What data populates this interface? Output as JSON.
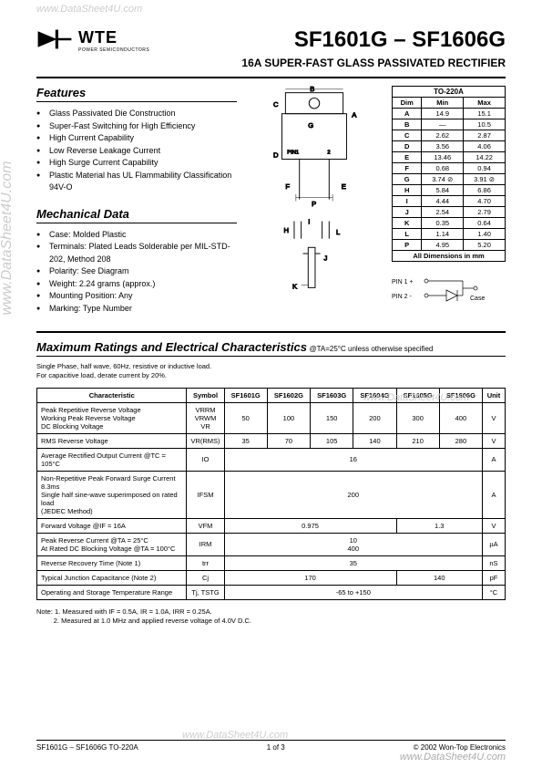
{
  "watermarks": {
    "left": "www.DataSheet4U.com",
    "top": "www.DataSheet4U.com",
    "center": "www.DataSheet4U.com",
    "bottom_center": "www.DataSheet4U.com",
    "bottom_right": "www.DataSheet4U.com"
  },
  "logo": {
    "brand": "WTE",
    "subtitle": "POWER SEMICONDUCTORS"
  },
  "header": {
    "part_range": "SF1601G – SF1606G",
    "subtitle": "16A SUPER-FAST GLASS PASSIVATED RECTIFIER"
  },
  "features": {
    "title": "Features",
    "items": [
      "Glass Passivated Die Construction",
      "Super-Fast Switching for High Efficiency",
      "High Current Capability",
      "Low Reverse Leakage Current",
      "High Surge Current Capability",
      "Plastic Material has UL Flammability Classification 94V-O"
    ]
  },
  "mechanical": {
    "title": "Mechanical Data",
    "items": [
      "Case: Molded Plastic",
      "Terminals: Plated Leads Solderable per MIL-STD-202, Method 208",
      "Polarity: See Diagram",
      "Weight: 2.24 grams (approx.)",
      "Mounting Position: Any",
      "Marking: Type Number"
    ]
  },
  "dimensions": {
    "caption": "TO-220A",
    "headers": [
      "Dim",
      "Min",
      "Max"
    ],
    "rows": [
      [
        "A",
        "14.9",
        "15.1"
      ],
      [
        "B",
        "—",
        "10.5"
      ],
      [
        "C",
        "2.62",
        "2.87"
      ],
      [
        "D",
        "3.56",
        "4.06"
      ],
      [
        "E",
        "13.46",
        "14.22"
      ],
      [
        "F",
        "0.68",
        "0.94"
      ],
      [
        "G",
        "3.74 ⊘",
        "3.91 ⊘"
      ],
      [
        "H",
        "5.84",
        "6.86"
      ],
      [
        "I",
        "4.44",
        "4.70"
      ],
      [
        "J",
        "2.54",
        "2.79"
      ],
      [
        "K",
        "0.35",
        "0.64"
      ],
      [
        "L",
        "1.14",
        "1.40"
      ],
      [
        "P",
        "4.95",
        "5.20"
      ]
    ],
    "footer": "All Dimensions in mm"
  },
  "pins": {
    "pin1": "PIN 1 +",
    "pin2": "PIN 2 -",
    "case": "Case"
  },
  "maximum": {
    "title": "Maximum Ratings and Electrical Characteristics",
    "cond": "@TA=25°C unless otherwise specified",
    "desc1": "Single Phase, half wave, 60Hz, resistive or inductive load.",
    "desc2": "For capacitive load, derate current by 20%."
  },
  "char_table": {
    "headers": [
      "Characteristic",
      "Symbol",
      "SF1601G",
      "SF1602G",
      "SF1603G",
      "SF1604G",
      "SF1605G",
      "SF1606G",
      "Unit"
    ],
    "rows": [
      {
        "char": "Peak Repetitive Reverse Voltage\nWorking Peak Reverse Voltage\nDC Blocking Voltage",
        "symbol": "VRRM\nVRWM\nVR",
        "vals": [
          "50",
          "100",
          "150",
          "200",
          "300",
          "400"
        ],
        "unit": "V"
      },
      {
        "char": "RMS Reverse Voltage",
        "symbol": "VR(RMS)",
        "vals": [
          "35",
          "70",
          "105",
          "140",
          "210",
          "280"
        ],
        "unit": "V"
      },
      {
        "char": "Average Rectified Output Current    @TC = 105°C",
        "symbol": "IO",
        "span": "16",
        "unit": "A"
      },
      {
        "char": "Non-Repetitive Peak Forward Surge Current 8.3ms\nSingle half sine-wave superimposed on rated load\n(JEDEC Method)",
        "symbol": "IFSM",
        "span": "200",
        "unit": "A"
      },
      {
        "char": "Forward Voltage    @IF = 16A",
        "symbol": "VFM",
        "span4": "0.975",
        "span2": "1.3",
        "unit": "V"
      },
      {
        "char": "Peak Reverse Current          @TA = 25°C\nAt Rated DC Blocking Voltage   @TA = 100°C",
        "symbol": "IRM",
        "span_top": "10",
        "span_bot": "400",
        "unit": "µA"
      },
      {
        "char": "Reverse Recovery Time (Note 1)",
        "symbol": "trr",
        "span": "35",
        "unit": "nS"
      },
      {
        "char": "Typical Junction Capacitance (Note 2)",
        "symbol": "Cj",
        "span4": "170",
        "span2": "140",
        "unit": "pF"
      },
      {
        "char": "Operating and Storage Temperature Range",
        "symbol": "Tj, TSTG",
        "span": "-65 to +150",
        "unit": "°C"
      }
    ]
  },
  "notes": {
    "n1": "Note:  1. Measured with IF = 0.5A, IR = 1.0A, IRR = 0.25A.",
    "n2": "         2. Measured at 1.0 MHz and applied reverse voltage of 4.0V D.C."
  },
  "footer": {
    "left": "SF1601G – SF1606G TO-220A",
    "center": "1  of  3",
    "right": "© 2002 Won-Top Electronics"
  }
}
